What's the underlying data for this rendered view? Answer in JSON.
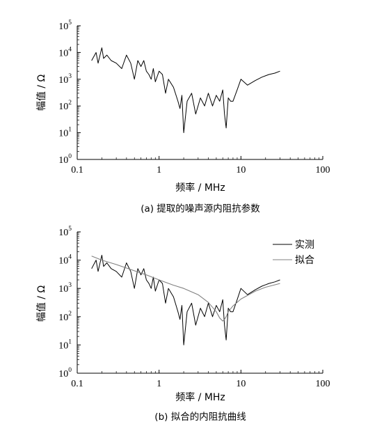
{
  "chart_data": [
    {
      "type": "line",
      "title": "",
      "caption": "(a)  提取的噪声源内阻抗参数",
      "xlabel": "频率 / MHz",
      "ylabel": "幅值 / Ω",
      "xscale": "log",
      "yscale": "log",
      "xlim": [
        0.1,
        100
      ],
      "ylim": [
        1,
        100000
      ],
      "xticks": [
        "0.1",
        "1",
        "10",
        "100"
      ],
      "yticks": [
        {
          "base": "10",
          "exp": "0"
        },
        {
          "base": "10",
          "exp": "1"
        },
        {
          "base": "10",
          "exp": "2"
        },
        {
          "base": "10",
          "exp": "3"
        },
        {
          "base": "10",
          "exp": "4"
        },
        {
          "base": "10",
          "exp": "5"
        }
      ],
      "grid": false,
      "legend": null,
      "series": [
        {
          "color": "#000000",
          "x": [
            0.15,
            0.17,
            0.18,
            0.2,
            0.21,
            0.23,
            0.26,
            0.3,
            0.35,
            0.4,
            0.45,
            0.5,
            0.55,
            0.6,
            0.65,
            0.7,
            0.75,
            0.8,
            0.85,
            0.9,
            1.0,
            1.1,
            1.2,
            1.3,
            1.5,
            1.7,
            1.8,
            1.9,
            2.0,
            2.2,
            2.5,
            2.8,
            3.2,
            3.6,
            4.0,
            4.5,
            5.0,
            5.5,
            6.0,
            6.3,
            6.6,
            7.0,
            7.5,
            8.0,
            9.0,
            10,
            12,
            15,
            18,
            22,
            26,
            30
          ],
          "y": [
            5000,
            10000,
            4000,
            15000,
            6000,
            8000,
            5000,
            4000,
            2500,
            8000,
            4000,
            1000,
            5000,
            3000,
            5000,
            2000,
            1500,
            1000,
            2500,
            800,
            2000,
            1500,
            300,
            1000,
            500,
            150,
            80,
            250,
            10,
            150,
            300,
            50,
            200,
            100,
            300,
            100,
            250,
            150,
            400,
            50,
            15,
            200,
            150,
            150,
            400,
            1000,
            600,
            900,
            1200,
            1500,
            1700,
            2000
          ]
        }
      ]
    },
    {
      "type": "line",
      "title": "",
      "caption": "(b)  拟合的内阻抗曲线",
      "xlabel": "频率 / MHz",
      "ylabel": "幅值 / Ω",
      "xscale": "log",
      "yscale": "log",
      "xlim": [
        0.1,
        100
      ],
      "ylim": [
        1,
        100000
      ],
      "xticks": [
        "0.1",
        "1",
        "10",
        "100"
      ],
      "yticks": [
        {
          "base": "10",
          "exp": "0"
        },
        {
          "base": "10",
          "exp": "1"
        },
        {
          "base": "10",
          "exp": "2"
        },
        {
          "base": "10",
          "exp": "3"
        },
        {
          "base": "10",
          "exp": "4"
        },
        {
          "base": "10",
          "exp": "5"
        }
      ],
      "grid": false,
      "legend": "top-right",
      "series": [
        {
          "name": "实测",
          "color": "#000000",
          "x": [
            0.15,
            0.17,
            0.18,
            0.2,
            0.21,
            0.23,
            0.26,
            0.3,
            0.35,
            0.4,
            0.45,
            0.5,
            0.55,
            0.6,
            0.65,
            0.7,
            0.75,
            0.8,
            0.85,
            0.9,
            1.0,
            1.1,
            1.2,
            1.3,
            1.5,
            1.7,
            1.8,
            1.9,
            2.0,
            2.2,
            2.5,
            2.8,
            3.2,
            3.6,
            4.0,
            4.5,
            5.0,
            5.5,
            6.0,
            6.3,
            6.6,
            7.0,
            7.5,
            8.0,
            9.0,
            10,
            12,
            15,
            18,
            22,
            26,
            30
          ],
          "y": [
            5000,
            10000,
            4000,
            15000,
            6000,
            8000,
            5000,
            4000,
            2500,
            8000,
            4000,
            1000,
            5000,
            3000,
            5000,
            2000,
            1500,
            1000,
            2500,
            800,
            2000,
            1500,
            300,
            1000,
            500,
            150,
            80,
            250,
            10,
            150,
            300,
            50,
            200,
            100,
            300,
            100,
            250,
            150,
            400,
            50,
            15,
            200,
            150,
            150,
            400,
            1000,
            600,
            900,
            1200,
            1500,
            1700,
            2000
          ]
        },
        {
          "name": "拟合",
          "color": "#808080",
          "x": [
            0.15,
            0.2,
            0.3,
            0.5,
            0.7,
            1.0,
            1.5,
            2.0,
            3.0,
            4.0,
            5.0,
            5.5,
            6.0,
            6.3,
            6.6,
            7.0,
            8.0,
            10,
            15,
            20,
            30
          ],
          "y": [
            14000,
            10000,
            7000,
            4200,
            3000,
            2000,
            1300,
            1000,
            600,
            320,
            150,
            90,
            70,
            80,
            100,
            150,
            240,
            420,
            800,
            1100,
            1500
          ]
        }
      ]
    }
  ]
}
